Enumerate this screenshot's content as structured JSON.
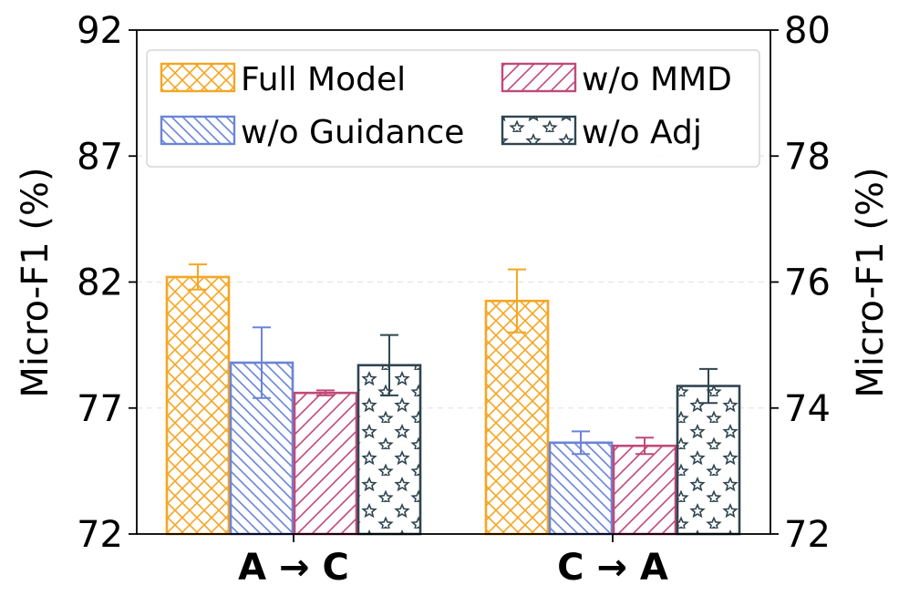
{
  "chart_data": {
    "type": "bar",
    "categories": [
      "A → C",
      "C → A"
    ],
    "ylabel": "Micro-F1 (%)",
    "ylabel_right": "Micro-F1 (%)",
    "left_axis": {
      "ylim": [
        72,
        92
      ],
      "ticks": [
        "72",
        "77",
        "82",
        "87",
        "92"
      ],
      "applies_to": "A → C"
    },
    "right_axis": {
      "ylim": [
        72,
        80
      ],
      "ticks": [
        "72",
        "74",
        "76",
        "78",
        "80"
      ],
      "applies_to": "C → A"
    },
    "grid": "dashed horizontal",
    "legend_position": "top",
    "series": [
      {
        "name": "Full Model",
        "color": "#F5A623",
        "pattern": "crosshatch",
        "values": [
          82.2,
          75.7
        ],
        "errors": [
          0.5,
          0.5
        ]
      },
      {
        "name": "w/o Guidance",
        "color": "#6B84D8",
        "pattern": "backslash",
        "values": [
          78.8,
          73.45
        ],
        "errors": [
          1.4,
          0.18
        ]
      },
      {
        "name": "w/o MMD",
        "color": "#C0497A",
        "pattern": "slash",
        "values": [
          77.6,
          73.4
        ],
        "errors": [
          0.1,
          0.13
        ]
      },
      {
        "name": "w/o Adj",
        "color": "#2F4550",
        "pattern": "stars",
        "values": [
          78.7,
          74.35
        ],
        "errors": [
          1.2,
          0.27
        ]
      }
    ]
  }
}
